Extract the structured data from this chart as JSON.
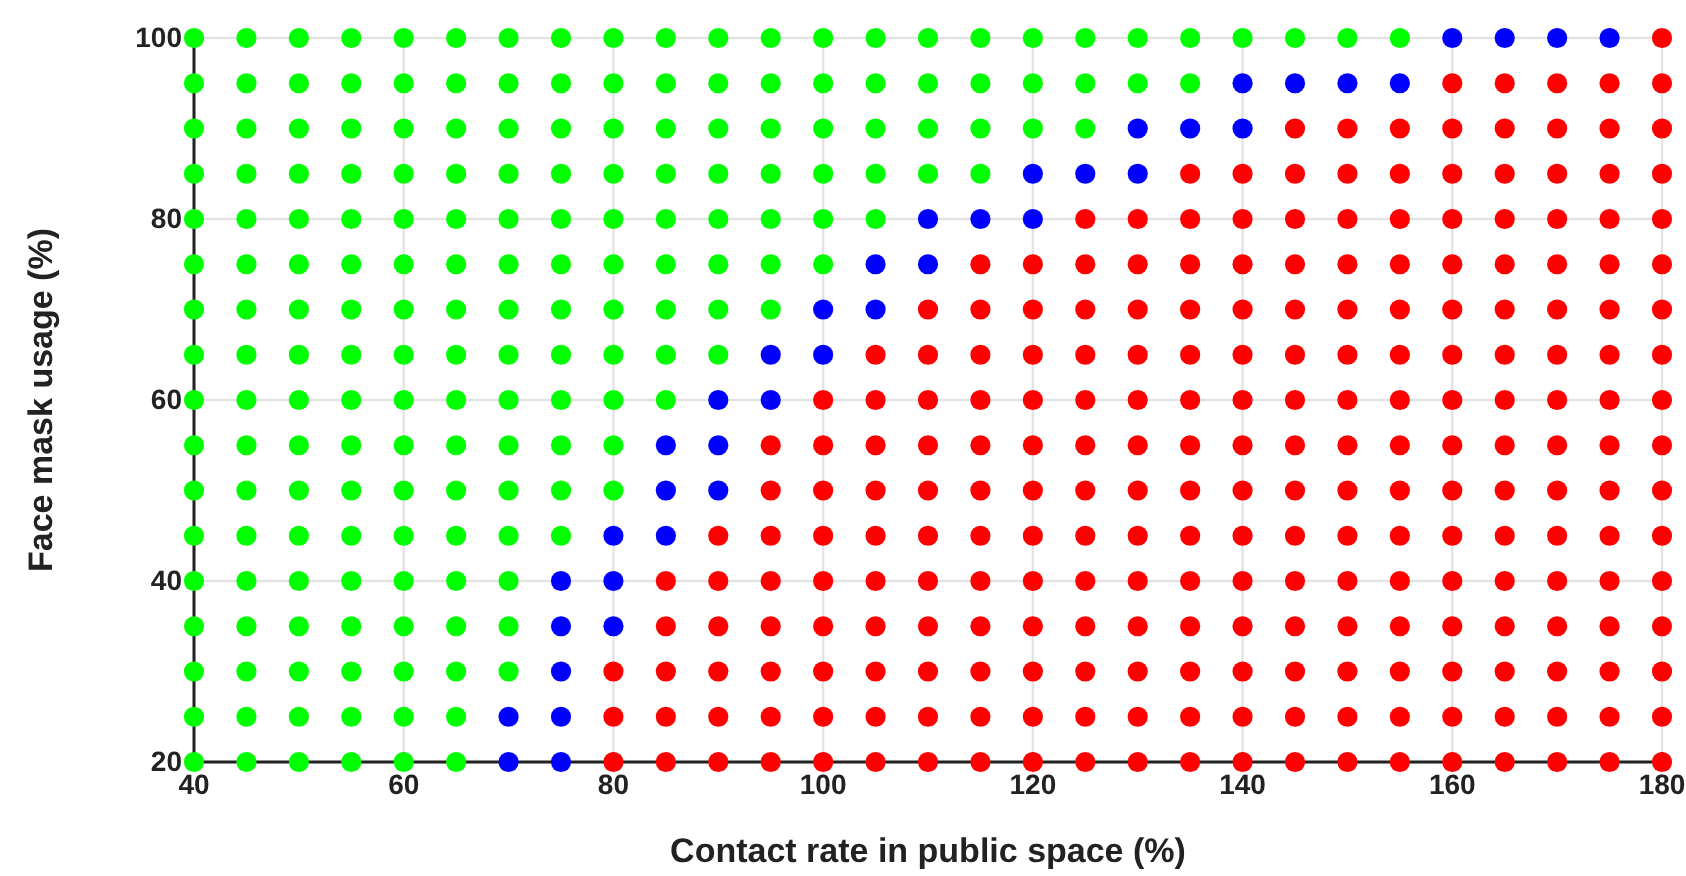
{
  "chart_data": {
    "type": "scatter",
    "xlabel": "Contact rate in public space (%)",
    "ylabel": "Face mask usage (%)",
    "xlim": [
      40,
      180
    ],
    "xticks": [
      40,
      60,
      80,
      100,
      120,
      140,
      160,
      180
    ],
    "ylim": [
      20,
      100
    ],
    "yticks": [
      20,
      40,
      60,
      80,
      100
    ],
    "grid": true,
    "marker": "circle",
    "series": [
      {
        "color": "#00ff00",
        "x": [
          40,
          45,
          50,
          55,
          60,
          65,
          40,
          45,
          50,
          55,
          60,
          65,
          40,
          45,
          50,
          55,
          60,
          65,
          70,
          40,
          45,
          50,
          55,
          60,
          65,
          70,
          40,
          45,
          50,
          55,
          60,
          65,
          70,
          40,
          45,
          50,
          55,
          60,
          65,
          70,
          75,
          40,
          45,
          50,
          55,
          60,
          65,
          70,
          75,
          80,
          40,
          45,
          50,
          55,
          60,
          65,
          70,
          75,
          80,
          40,
          45,
          50,
          55,
          60,
          65,
          70,
          75,
          80,
          85,
          40,
          45,
          50,
          55,
          60,
          65,
          70,
          75,
          80,
          85,
          90,
          40,
          45,
          50,
          55,
          60,
          65,
          70,
          75,
          80,
          85,
          90,
          95,
          40,
          45,
          50,
          55,
          60,
          65,
          70,
          75,
          80,
          85,
          90,
          95,
          100,
          40,
          45,
          50,
          55,
          60,
          65,
          70,
          75,
          80,
          85,
          90,
          95,
          100,
          105,
          40,
          45,
          50,
          55,
          60,
          65,
          70,
          75,
          80,
          85,
          90,
          95,
          100,
          105,
          110,
          115,
          40,
          45,
          50,
          55,
          60,
          65,
          70,
          75,
          80,
          85,
          90,
          95,
          100,
          105,
          110,
          115,
          120,
          125,
          40,
          45,
          50,
          55,
          60,
          65,
          70,
          75,
          80,
          85,
          90,
          95,
          100,
          105,
          110,
          115,
          120,
          125,
          130,
          135,
          40,
          45,
          50,
          55,
          60,
          65,
          70,
          75,
          80,
          85,
          90,
          95,
          100,
          105,
          110,
          115,
          120,
          125,
          130,
          135,
          140,
          145,
          150,
          155
        ],
        "values": [
          20,
          20,
          20,
          20,
          20,
          20,
          25,
          25,
          25,
          25,
          25,
          25,
          30,
          30,
          30,
          30,
          30,
          30,
          30,
          35,
          35,
          35,
          35,
          35,
          35,
          35,
          40,
          40,
          40,
          40,
          40,
          40,
          40,
          45,
          45,
          45,
          45,
          45,
          45,
          45,
          45,
          50,
          50,
          50,
          50,
          50,
          50,
          50,
          50,
          50,
          55,
          55,
          55,
          55,
          55,
          55,
          55,
          55,
          55,
          60,
          60,
          60,
          60,
          60,
          60,
          60,
          60,
          60,
          60,
          65,
          65,
          65,
          65,
          65,
          65,
          65,
          65,
          65,
          65,
          65,
          70,
          70,
          70,
          70,
          70,
          70,
          70,
          70,
          70,
          70,
          70,
          70,
          75,
          75,
          75,
          75,
          75,
          75,
          75,
          75,
          75,
          75,
          75,
          75,
          75,
          80,
          80,
          80,
          80,
          80,
          80,
          80,
          80,
          80,
          80,
          80,
          80,
          80,
          80,
          85,
          85,
          85,
          85,
          85,
          85,
          85,
          85,
          85,
          85,
          85,
          85,
          85,
          85,
          85,
          85,
          90,
          90,
          90,
          90,
          90,
          90,
          90,
          90,
          90,
          90,
          90,
          90,
          90,
          90,
          90,
          90,
          90,
          90,
          95,
          95,
          95,
          95,
          95,
          95,
          95,
          95,
          95,
          95,
          95,
          95,
          95,
          95,
          95,
          95,
          95,
          95,
          95,
          95,
          100,
          100,
          100,
          100,
          100,
          100,
          100,
          100,
          100,
          100,
          100,
          100,
          100,
          100,
          100,
          100,
          100,
          100,
          100,
          100,
          100,
          100,
          100,
          100
        ]
      },
      {
        "color": "#0000ff",
        "x": [
          70,
          75,
          70,
          75,
          75,
          75,
          80,
          75,
          80,
          80,
          85,
          85,
          90,
          85,
          90,
          90,
          95,
          95,
          100,
          100,
          105,
          105,
          110,
          110,
          115,
          120,
          120,
          125,
          130,
          130,
          135,
          140,
          140,
          145,
          150,
          155,
          160,
          165,
          170,
          175
        ],
        "values": [
          20,
          20,
          25,
          25,
          30,
          35,
          35,
          40,
          40,
          45,
          45,
          50,
          50,
          55,
          55,
          60,
          60,
          65,
          65,
          70,
          70,
          75,
          75,
          80,
          80,
          80,
          85,
          85,
          85,
          90,
          90,
          90,
          95,
          95,
          95,
          95,
          100,
          100,
          100,
          100
        ]
      },
      {
        "color": "#ff0000",
        "x": [
          80,
          85,
          90,
          95,
          100,
          105,
          110,
          115,
          120,
          125,
          130,
          135,
          140,
          145,
          150,
          155,
          160,
          165,
          170,
          175,
          180,
          80,
          85,
          90,
          95,
          100,
          105,
          110,
          115,
          120,
          125,
          130,
          135,
          140,
          145,
          150,
          155,
          160,
          165,
          170,
          175,
          180,
          80,
          85,
          90,
          95,
          100,
          105,
          110,
          115,
          120,
          125,
          130,
          135,
          140,
          145,
          150,
          155,
          160,
          165,
          170,
          175,
          180,
          85,
          90,
          95,
          100,
          105,
          110,
          115,
          120,
          125,
          130,
          135,
          140,
          145,
          150,
          155,
          160,
          165,
          170,
          175,
          180,
          85,
          90,
          95,
          100,
          105,
          110,
          115,
          120,
          125,
          130,
          135,
          140,
          145,
          150,
          155,
          160,
          165,
          170,
          175,
          180,
          90,
          95,
          100,
          105,
          110,
          115,
          120,
          125,
          130,
          135,
          140,
          145,
          150,
          155,
          160,
          165,
          170,
          175,
          180,
          95,
          100,
          105,
          110,
          115,
          120,
          125,
          130,
          135,
          140,
          145,
          150,
          155,
          160,
          165,
          170,
          175,
          180,
          95,
          100,
          105,
          110,
          115,
          120,
          125,
          130,
          135,
          140,
          145,
          150,
          155,
          160,
          165,
          170,
          175,
          180,
          100,
          105,
          110,
          115,
          120,
          125,
          130,
          135,
          140,
          145,
          150,
          155,
          160,
          165,
          170,
          175,
          180,
          105,
          110,
          115,
          120,
          125,
          130,
          135,
          140,
          145,
          150,
          155,
          160,
          165,
          170,
          175,
          180,
          110,
          115,
          120,
          125,
          130,
          135,
          140,
          145,
          150,
          155,
          160,
          165,
          170,
          175,
          180,
          115,
          120,
          125,
          130,
          135,
          140,
          145,
          150,
          155,
          160,
          165,
          170,
          175,
          180,
          125,
          130,
          135,
          140,
          145,
          150,
          155,
          160,
          165,
          170,
          175,
          180,
          135,
          140,
          145,
          150,
          155,
          160,
          165,
          170,
          175,
          180,
          145,
          150,
          155,
          160,
          165,
          170,
          175,
          180,
          160,
          165,
          170,
          175,
          180,
          180
        ],
        "values": [
          20,
          20,
          20,
          20,
          20,
          20,
          20,
          20,
          20,
          20,
          20,
          20,
          20,
          20,
          20,
          20,
          20,
          20,
          20,
          20,
          20,
          25,
          25,
          25,
          25,
          25,
          25,
          25,
          25,
          25,
          25,
          25,
          25,
          25,
          25,
          25,
          25,
          25,
          25,
          25,
          25,
          25,
          30,
          30,
          30,
          30,
          30,
          30,
          30,
          30,
          30,
          30,
          30,
          30,
          30,
          30,
          30,
          30,
          30,
          30,
          30,
          30,
          30,
          35,
          35,
          35,
          35,
          35,
          35,
          35,
          35,
          35,
          35,
          35,
          35,
          35,
          35,
          35,
          35,
          35,
          35,
          35,
          35,
          40,
          40,
          40,
          40,
          40,
          40,
          40,
          40,
          40,
          40,
          40,
          40,
          40,
          40,
          40,
          40,
          40,
          40,
          40,
          40,
          45,
          45,
          45,
          45,
          45,
          45,
          45,
          45,
          45,
          45,
          45,
          45,
          45,
          45,
          45,
          45,
          45,
          45,
          45,
          50,
          50,
          50,
          50,
          50,
          50,
          50,
          50,
          50,
          50,
          50,
          50,
          50,
          50,
          50,
          50,
          50,
          50,
          55,
          55,
          55,
          55,
          55,
          55,
          55,
          55,
          55,
          55,
          55,
          55,
          55,
          55,
          55,
          55,
          55,
          55,
          60,
          60,
          60,
          60,
          60,
          60,
          60,
          60,
          60,
          60,
          60,
          60,
          60,
          60,
          60,
          60,
          60,
          65,
          65,
          65,
          65,
          65,
          65,
          65,
          65,
          65,
          65,
          65,
          65,
          65,
          65,
          65,
          65,
          70,
          70,
          70,
          70,
          70,
          70,
          70,
          70,
          70,
          70,
          70,
          70,
          70,
          70,
          70,
          75,
          75,
          75,
          75,
          75,
          75,
          75,
          75,
          75,
          75,
          75,
          75,
          75,
          75,
          80,
          80,
          80,
          80,
          80,
          80,
          80,
          80,
          80,
          80,
          80,
          80,
          85,
          85,
          85,
          85,
          85,
          85,
          85,
          85,
          85,
          85,
          90,
          90,
          90,
          90,
          90,
          90,
          90,
          90,
          95,
          95,
          95,
          95,
          95,
          100
        ]
      }
    ]
  }
}
